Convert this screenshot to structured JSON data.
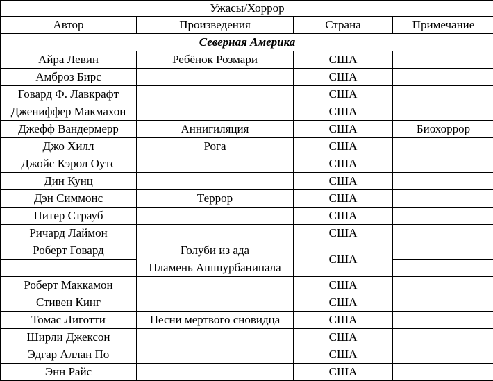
{
  "title": "Ужасы/Хоррор",
  "headers": [
    "Автор",
    "Произведения",
    "Страна",
    "Примечание"
  ],
  "section": "Северная Америка",
  "rows": [
    {
      "author": "Айра Левин",
      "work": "Ребёнок Розмари",
      "country": "США",
      "note": ""
    },
    {
      "author": "Амброз Бирс",
      "work": "",
      "country": "США",
      "note": ""
    },
    {
      "author": "Говард Ф. Лавкрафт",
      "work": "",
      "country": "США",
      "note": ""
    },
    {
      "author": "Джениффер Макмахон",
      "work": "",
      "country": "США",
      "note": ""
    },
    {
      "author": "Джефф Вандермерр",
      "work": "Аннигиляция",
      "country": "США",
      "note": "Биохоррор"
    },
    {
      "author": "Джо Хилл",
      "work": "Рога",
      "country": "США",
      "note": ""
    },
    {
      "author": "Джойс Кэрол Оутс",
      "work": "",
      "country": "США",
      "note": ""
    },
    {
      "author": "Дин Кунц",
      "work": "",
      "country": "США",
      "note": ""
    },
    {
      "author": "Дэн Симмонс",
      "work": "Террор",
      "country": "США",
      "note": ""
    },
    {
      "author": "Питер Страуб",
      "work": "",
      "country": "США",
      "note": ""
    },
    {
      "author": "Ричард Лаймон",
      "work": "",
      "country": "США",
      "note": ""
    }
  ],
  "howard": {
    "author": "Роберт Говард",
    "works": [
      "Голуби из ада",
      "Пламень Ашшурбанипала"
    ],
    "country": "США"
  },
  "rows2": [
    {
      "author": "Роберт Маккамон",
      "work": "",
      "country": "США",
      "note": ""
    },
    {
      "author": "Стивен Кинг",
      "work": "",
      "country": "США",
      "note": ""
    },
    {
      "author": "Томас Лиготти",
      "work": "Песни мертвого сновидца",
      "country": "США",
      "note": ""
    },
    {
      "author": "Ширли Джексон",
      "work": "",
      "country": "США",
      "note": ""
    },
    {
      "author": "Эдгар Аллан По",
      "work": "",
      "country": "США",
      "note": ""
    },
    {
      "author": "Энн Райс",
      "work": "",
      "country": "США",
      "note": ""
    }
  ]
}
